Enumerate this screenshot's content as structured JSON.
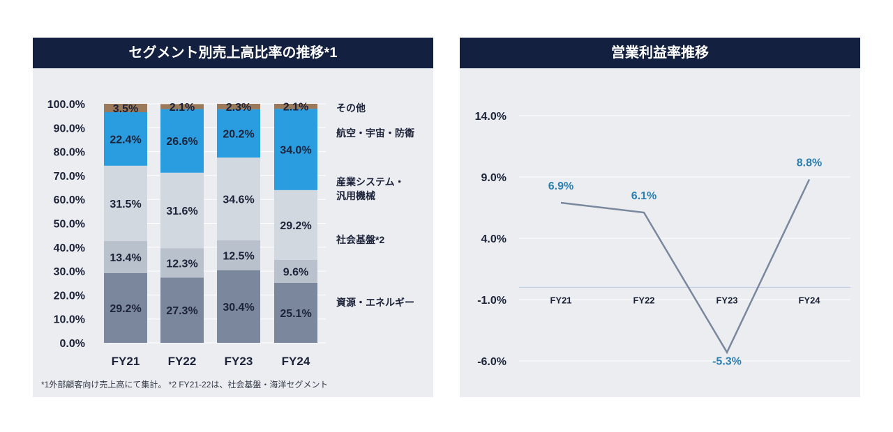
{
  "left": {
    "title": "セグメント別売上高比率の推移*1",
    "footnote": "*1外部顧客向け売上高にて集計。 *2 FY21-22は、社会基盤・海洋セグメント"
  },
  "right": {
    "title": "営業利益率推移"
  },
  "colors": {
    "header_bg": "#13203f",
    "panel_bg": "#ebedf1",
    "resources_energy": "#7a879d",
    "social_infra": "#b9c1cd",
    "industrial": "#d2d8e0",
    "aerospace": "#2a9ce0",
    "other": "#9b7a5b",
    "line": "#7a879d",
    "line_label": "#2a7fb1"
  },
  "chart_data": [
    {
      "type": "bar",
      "stacked": true,
      "title": "セグメント別売上高比率の推移*1",
      "categories": [
        "FY21",
        "FY22",
        "FY23",
        "FY24"
      ],
      "yticks": [
        "0.0%",
        "10.0%",
        "20.0%",
        "30.0%",
        "40.0%",
        "50.0%",
        "60.0%",
        "70.0%",
        "80.0%",
        "90.0%",
        "100.0%"
      ],
      "ylim": [
        0,
        100
      ],
      "series": [
        {
          "name": "資源・エネルギー",
          "values": [
            29.2,
            27.3,
            30.4,
            25.1
          ],
          "labels": [
            "29.2%",
            "27.3%",
            "30.4%",
            "25.1%"
          ]
        },
        {
          "name": "社会基盤*2",
          "values": [
            13.4,
            12.3,
            12.5,
            9.6
          ],
          "labels": [
            "13.4%",
            "12.3%",
            "12.5%",
            "9.6%"
          ]
        },
        {
          "name": "産業システム・汎用機械",
          "name_lines": [
            "産業システム・",
            "汎用機械"
          ],
          "values": [
            31.5,
            31.6,
            34.6,
            29.2
          ],
          "labels": [
            "31.5%",
            "31.6%",
            "34.6%",
            "29.2%"
          ]
        },
        {
          "name": "航空・宇宙・防衛",
          "values": [
            22.4,
            26.6,
            20.2,
            34.0
          ],
          "labels": [
            "22.4%",
            "26.6%",
            "20.2%",
            "34.0%"
          ]
        },
        {
          "name": "その他",
          "values": [
            3.5,
            2.1,
            2.3,
            2.1
          ],
          "labels": [
            "3.5%",
            "2.1%",
            "2.3%",
            "2.1%"
          ]
        }
      ],
      "legend": "right",
      "grid": true
    },
    {
      "type": "line",
      "title": "営業利益率推移",
      "categories": [
        "FY21",
        "FY22",
        "FY23",
        "FY24"
      ],
      "values": [
        6.9,
        6.1,
        -5.3,
        8.8
      ],
      "labels": [
        "6.9%",
        "6.1%",
        "-5.3%",
        "8.8%"
      ],
      "yticks": [
        "-6.0%",
        "-1.0%",
        "4.0%",
        "9.0%",
        "14.0%"
      ],
      "ylim": [
        -6,
        14
      ],
      "grid": true
    }
  ]
}
